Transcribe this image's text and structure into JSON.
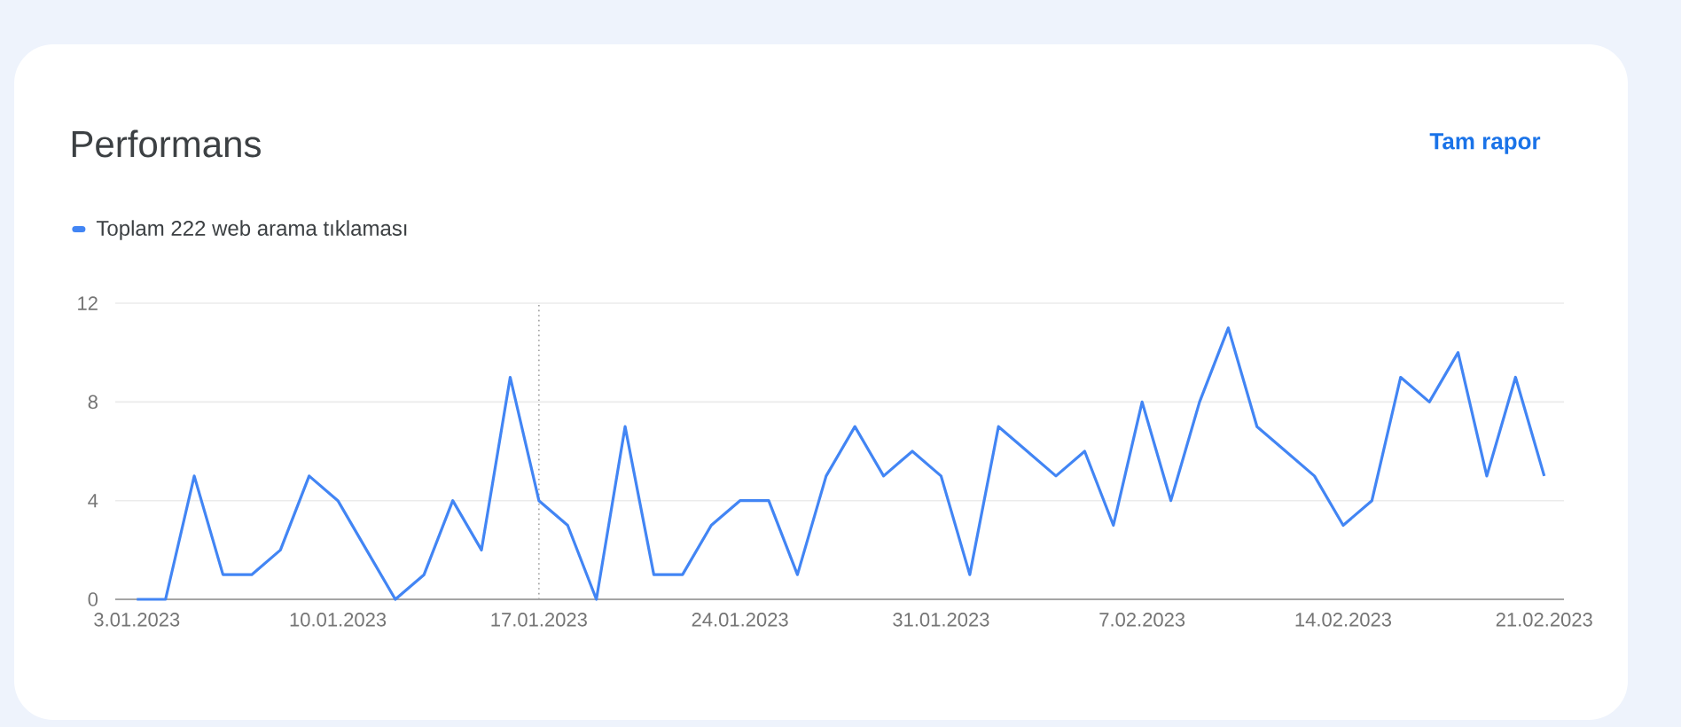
{
  "chart_data": {
    "type": "line",
    "title": "Performans",
    "annotations": [
      "Tam rapor"
    ],
    "x": [
      "2023-01-03",
      "2023-01-04",
      "2023-01-05",
      "2023-01-06",
      "2023-01-07",
      "2023-01-08",
      "2023-01-09",
      "2023-01-10",
      "2023-01-11",
      "2023-01-12",
      "2023-01-13",
      "2023-01-14",
      "2023-01-15",
      "2023-01-16",
      "2023-01-17",
      "2023-01-18",
      "2023-01-19",
      "2023-01-20",
      "2023-01-21",
      "2023-01-22",
      "2023-01-23",
      "2023-01-24",
      "2023-01-25",
      "2023-01-26",
      "2023-01-27",
      "2023-01-28",
      "2023-01-29",
      "2023-01-30",
      "2023-01-31",
      "2023-02-01",
      "2023-02-02",
      "2023-02-03",
      "2023-02-04",
      "2023-02-05",
      "2023-02-06",
      "2023-02-07",
      "2023-02-08",
      "2023-02-09",
      "2023-02-10",
      "2023-02-11",
      "2023-02-12",
      "2023-02-13",
      "2023-02-14",
      "2023-02-15",
      "2023-02-16",
      "2023-02-17",
      "2023-02-18",
      "2023-02-19",
      "2023-02-20",
      "2023-02-21"
    ],
    "series": [
      {
        "name": "Toplam 222 web arama tıklaması",
        "color": "#4285f4",
        "values": [
          0,
          0,
          5,
          1,
          1,
          2,
          5,
          4,
          2,
          0,
          1,
          4,
          2,
          9,
          4,
          3,
          0,
          7,
          1,
          1,
          3,
          4,
          4,
          1,
          5,
          7,
          5,
          6,
          5,
          1,
          7,
          6,
          5,
          6,
          3,
          8,
          4,
          8,
          11,
          7,
          6,
          5,
          3,
          4,
          9,
          8,
          10,
          5,
          9,
          5
        ]
      }
    ],
    "xlim": [
      "2023-01-02T06:00",
      "2023-02-21T16:30"
    ],
    "xticks": [
      {
        "value": "2023-01-03",
        "label": "3.01.2023"
      },
      {
        "value": "2023-01-10",
        "label": "10.01.2023"
      },
      {
        "value": "2023-01-17",
        "label": "17.01.2023"
      },
      {
        "value": "2023-01-24",
        "label": "24.01.2023"
      },
      {
        "value": "2023-01-31",
        "label": "31.01.2023"
      },
      {
        "value": "2023-02-07",
        "label": "7.02.2023"
      },
      {
        "value": "2023-02-14",
        "label": "14.02.2023"
      },
      {
        "value": "2023-02-21",
        "label": "21.02.2023"
      }
    ],
    "ylim": [
      0,
      12
    ],
    "yticks": [
      0,
      4,
      8,
      12
    ],
    "grid": "y",
    "legend": "top left",
    "marker": "none",
    "line_style": "solid",
    "ref_lines": [
      {
        "axis": "x",
        "value": "2023-01-17",
        "color": "#9e9e9e",
        "line_style": "dotted"
      }
    ]
  }
}
